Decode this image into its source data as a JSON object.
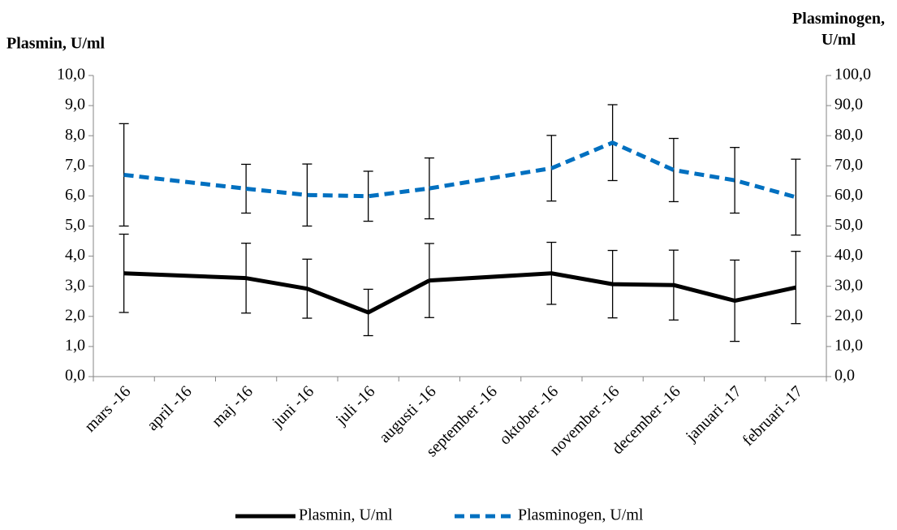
{
  "chart_data": {
    "type": "line",
    "ylabel": "Plasmin, U/ml",
    "y2label": "Plasminogen, U/ml",
    "categories": [
      "mars -16",
      "april -16",
      "maj -16",
      "juni -16",
      "juli -16",
      "augusti -16",
      "september -16",
      "oktober -16",
      "november -16",
      "december -16",
      "januari -17",
      "februari -17"
    ],
    "series": [
      {
        "name": "Plasmin, U/ml",
        "color": "#000000",
        "line_style": "solid",
        "values": [
          3.43,
          null,
          3.27,
          2.92,
          2.13,
          3.19,
          null,
          3.43,
          3.07,
          3.04,
          2.52,
          2.96
        ],
        "errors": [
          1.3,
          null,
          1.16,
          0.98,
          0.77,
          1.23,
          null,
          1.03,
          1.12,
          1.16,
          1.35,
          1.2
        ]
      },
      {
        "name": "Plasminogen, U/ml",
        "color": "#0070c0",
        "line_style": "dashed",
        "axis": "y2",
        "values": [
          67,
          null,
          62.4,
          60.3,
          59.9,
          62.5,
          null,
          69.2,
          77.7,
          68.6,
          65.2,
          59.6
        ],
        "errors": [
          17,
          null,
          8.1,
          10.3,
          8.3,
          10.1,
          null,
          10.9,
          12.6,
          10.5,
          10.9,
          12.6
        ]
      }
    ],
    "connect_gaps": true,
    "ylim": [
      0,
      10
    ],
    "yticks": [
      {
        "value": 0,
        "label": "0,0"
      },
      {
        "value": 1,
        "label": "1,0"
      },
      {
        "value": 2,
        "label": "2,0"
      },
      {
        "value": 3,
        "label": "3,0"
      },
      {
        "value": 4,
        "label": "4,0"
      },
      {
        "value": 5,
        "label": "5,0"
      },
      {
        "value": 6,
        "label": "6,0"
      },
      {
        "value": 7,
        "label": "7,0"
      },
      {
        "value": 8,
        "label": "8,0"
      },
      {
        "value": 9,
        "label": "9,0"
      },
      {
        "value": 10,
        "label": "10,0"
      }
    ],
    "y2lim": [
      0,
      100
    ],
    "y2ticks": [
      {
        "value": 0,
        "label": "0,0"
      },
      {
        "value": 10,
        "label": "10,0"
      },
      {
        "value": 20,
        "label": "20,0"
      },
      {
        "value": 30,
        "label": "30,0"
      },
      {
        "value": 40,
        "label": "40,0"
      },
      {
        "value": 50,
        "label": "50,0"
      },
      {
        "value": 60,
        "label": "60,0"
      },
      {
        "value": 70,
        "label": "70,0"
      },
      {
        "value": 80,
        "label": "80,0"
      },
      {
        "value": 90,
        "label": "90,0"
      },
      {
        "value": 100,
        "label": "100,0"
      }
    ],
    "legend": "bottom"
  }
}
